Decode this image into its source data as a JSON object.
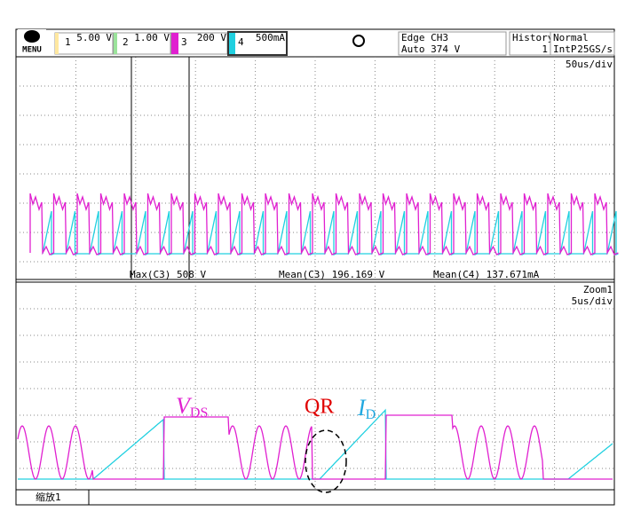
{
  "toolbar": {
    "menu": "MENU",
    "channels": [
      {
        "number": "1",
        "scale": "5.00 V"
      },
      {
        "number": "2",
        "scale": "1.00 V"
      },
      {
        "number": "3",
        "scale": "200 V"
      },
      {
        "number": "4",
        "scale": "500mA"
      }
    ],
    "trigger": {
      "mode": "Edge CH3",
      "level": "Auto 374 V"
    },
    "history": {
      "label": "History",
      "count": "1"
    },
    "acquisition": {
      "mode": "Normal",
      "interpolation": "IntP",
      "rate": "25GS/s"
    }
  },
  "main_window": {
    "timebase": "50us/div",
    "measurements": [
      "Max(C3)  508 V",
      "Mean(C3)  196.169 V",
      "Mean(C4)  137.671mA"
    ]
  },
  "zoom_window": {
    "label": "Zoom1",
    "timebase": "5us/div"
  },
  "annotations": {
    "vds": {
      "symbol": "V",
      "subscript": "DS"
    },
    "qr": "QR",
    "id": {
      "symbol": "I",
      "subscript": "D"
    }
  },
  "tab": "缩放1"
}
